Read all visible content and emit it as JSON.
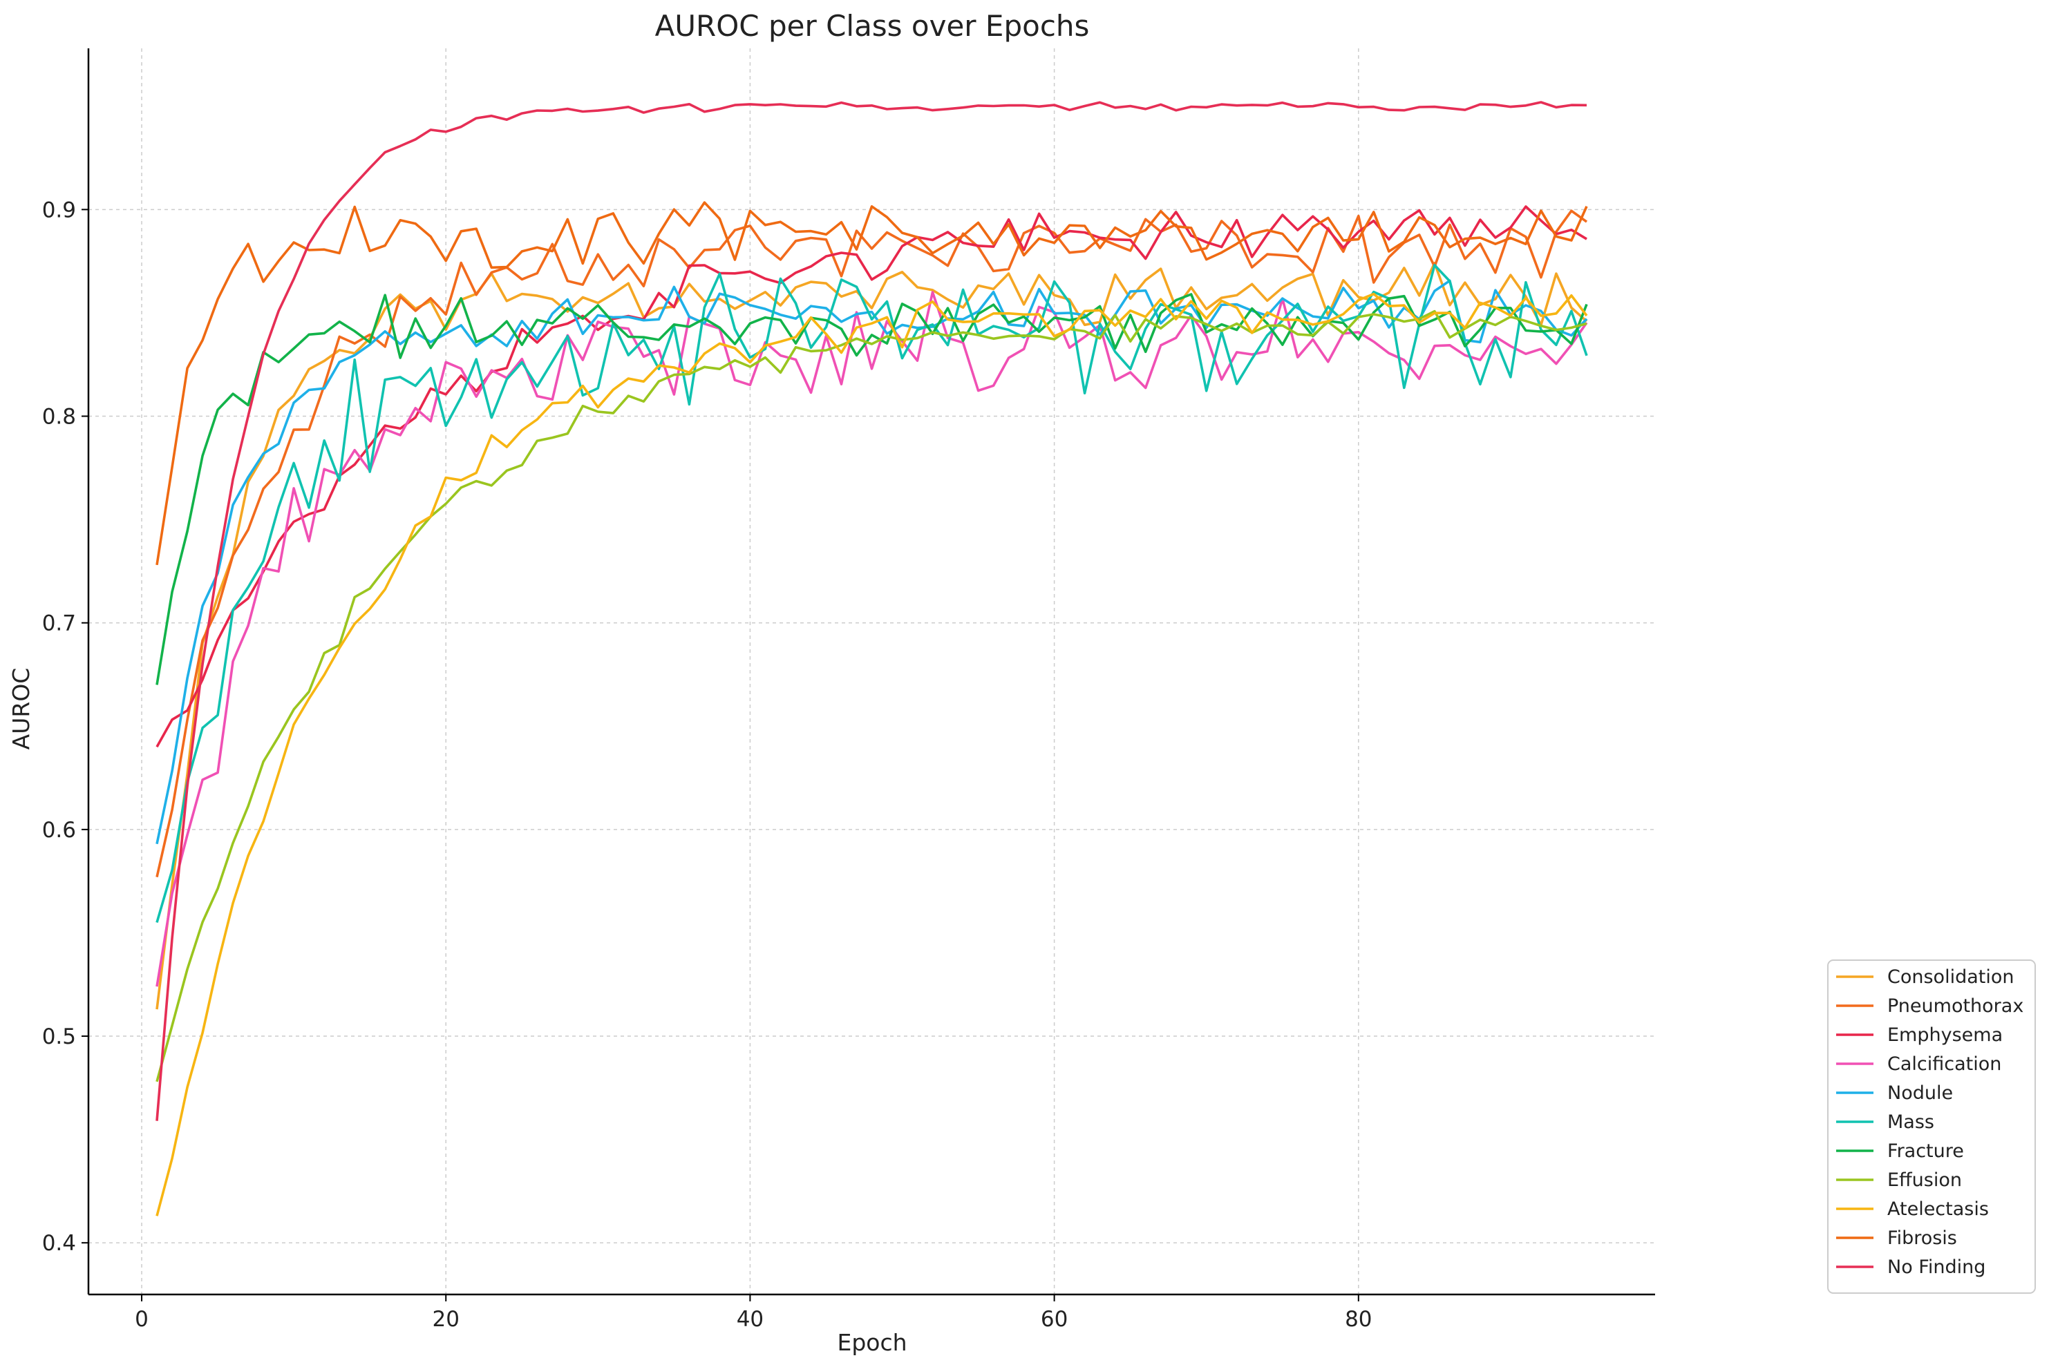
{
  "chart_data": {
    "type": "line",
    "title": "AUROC per Class over Epochs",
    "xlabel": "Epoch",
    "ylabel": "AUROC",
    "xlim": [
      -3.5,
      99.5
    ],
    "ylim": [
      0.375,
      0.978
    ],
    "xticks": [
      0,
      20,
      40,
      60,
      80
    ],
    "yticks": [
      0.4,
      0.5,
      0.6,
      0.7,
      0.8,
      0.9
    ],
    "grid": true,
    "legend_position": "lower-right-outside",
    "series": [
      {
        "name": "Consolidation",
        "color": "#f5a623",
        "start": 0.513,
        "plateau": 0.86,
        "rate": 0.22,
        "noise": 0.01,
        "seed": 11
      },
      {
        "name": "Pneumothorax",
        "color": "#f26b1d",
        "start": 0.577,
        "plateau": 0.882,
        "rate": 0.14,
        "noise": 0.011,
        "seed": 23
      },
      {
        "name": "Emphysema",
        "color": "#e8264b",
        "start": 0.64,
        "plateau": 0.893,
        "rate": 0.06,
        "noise": 0.008,
        "seed": 37
      },
      {
        "name": "Calcification",
        "color": "#f050b4",
        "start": 0.524,
        "plateau": 0.835,
        "rate": 0.13,
        "noise": 0.017,
        "seed": 41
      },
      {
        "name": "Nodule",
        "color": "#1eb0e8",
        "start": 0.593,
        "plateau": 0.85,
        "rate": 0.2,
        "noise": 0.01,
        "seed": 53
      },
      {
        "name": "Mass",
        "color": "#10c2b0",
        "start": 0.555,
        "plateau": 0.84,
        "rate": 0.15,
        "noise": 0.022,
        "seed": 67
      },
      {
        "name": "Fracture",
        "color": "#12b34a",
        "start": 0.67,
        "plateau": 0.845,
        "rate": 0.3,
        "noise": 0.01,
        "seed": 71
      },
      {
        "name": "Effusion",
        "color": "#9ac51f",
        "start": 0.478,
        "plateau": 0.845,
        "rate": 0.075,
        "noise": 0.005,
        "seed": 83
      },
      {
        "name": "Atelectasis",
        "color": "#f7b512",
        "start": 0.413,
        "plateau": 0.85,
        "rate": 0.085,
        "noise": 0.007,
        "seed": 97
      },
      {
        "name": "Fibrosis",
        "color": "#ef6a12",
        "start": 0.728,
        "plateau": 0.888,
        "rate": 0.4,
        "noise": 0.011,
        "seed": 101
      },
      {
        "name": "No Finding",
        "color": "#e62e55",
        "start": 0.459,
        "plateau": 0.95,
        "rate": 0.2,
        "noise": 0.0015,
        "seed": 113
      }
    ]
  }
}
